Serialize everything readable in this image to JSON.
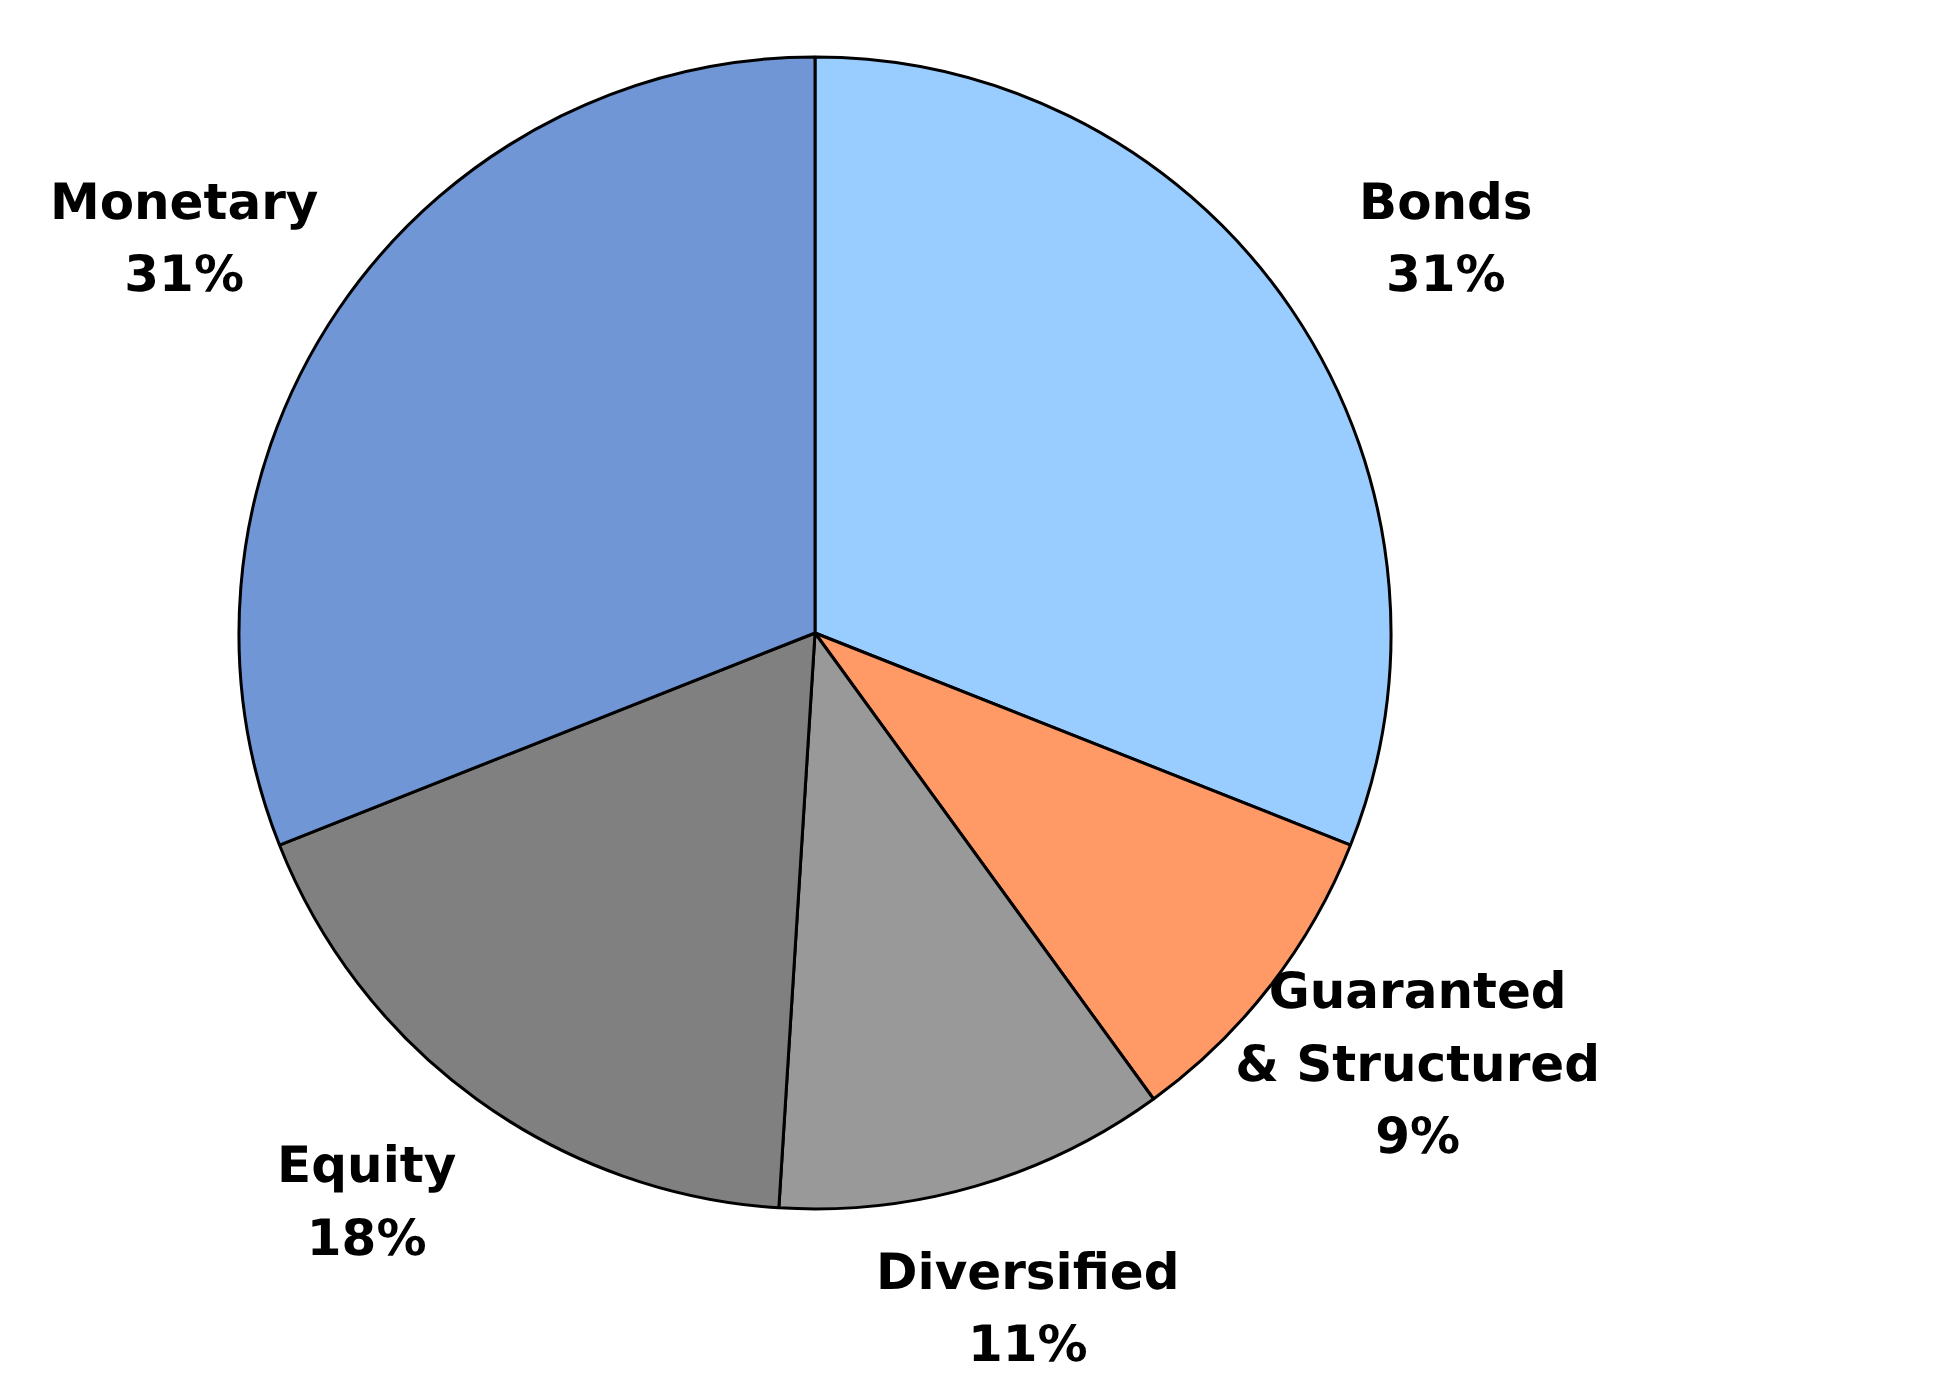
{
  "chart_data": {
    "type": "pie",
    "categories": [
      "Bonds",
      "Guaranted & Structured",
      "Diversified",
      "Equity",
      "Monetary"
    ],
    "values": [
      31,
      9,
      11,
      18,
      31
    ],
    "value_labels": [
      "31%",
      "9%",
      "11%",
      "18%",
      "31%"
    ],
    "colors": [
      "#99ccff",
      "#ff9966",
      "#999999",
      "#808080",
      "#7096d6"
    ]
  }
}
